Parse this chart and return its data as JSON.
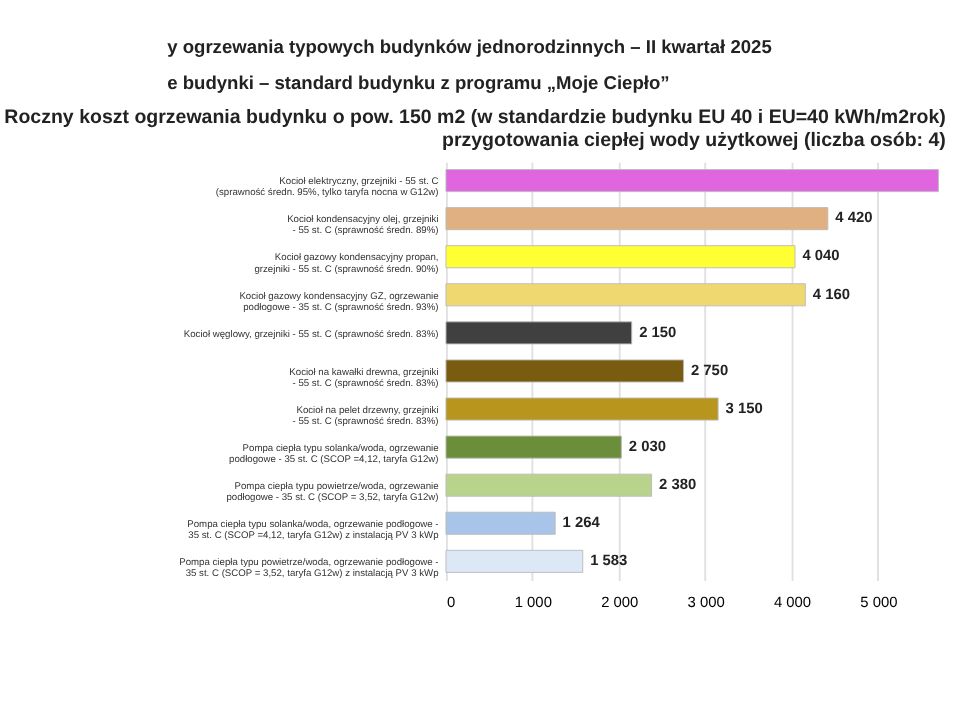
{
  "chart_data": {
    "type": "bar",
    "orientation": "horizontal",
    "title": "Roczny koszt ogrzewania budynku o pow. 150 m2 (w standardzie budynku EU 40 i EU=40 kWh/m2rok)\nprzygotowania ciepłej wody użytkowej (liczba osób: 4)",
    "annotations": [
      "y ogrzewania typowych budynków jednorodzinnych – II kwartał 2025",
      "e budynki – standard budynku z programu „Moje Ciepło”"
    ],
    "categories": [
      "Kocioł elektryczny, grzejniki - 55 st. C (sprawność średn. 95%, tylko taryfa nocna w G12w)",
      "Kocioł kondensacyjny olej, grzejniki - 55 st. C (sprawność średn. 89%)",
      "Kocioł gazowy kondensacyjny propan, grzejniki - 55 st. C (sprawność średn. 90%)",
      "Kocioł gazowy kondensacyjny GZ, ogrzewanie podłogowe - 35 st. C (sprawność średn. 93%)",
      "Kocioł węglowy, grzejniki - 55 st. C (sprawność średn. 83%)",
      "Kocioł na kawałki drewna, grzejniki - 55 st. C (sprawność średn. 83%)",
      "Kocioł na pelet drzewny, grzejniki - 55 st. C (sprawność średn. 83%)",
      "Pompa ciepła typu solanka/woda, ogrzewanie podłogowe - 35 st. C (SCOP =4,12, taryfa G12w)",
      "Pompa ciepła typu powietrze/woda, ogrzewanie podłogowe - 35 st. C (SCOP = 3,52, taryfa G12w)",
      "Pompa ciepła typu solanka/woda, ogrzewanie podłogowe - 35 st. C (SCOP =4,12, taryfa G12w) z instalacją PV 3 kWp",
      "Pompa ciepła typu powietrze/woda, ogrzewanie podłogowe - 35 st. C (SCOP = 3,52, taryfa G12w) z instalacją PV 3 kWp"
    ],
    "values": [
      5700,
      4420,
      4040,
      4160,
      2150,
      2750,
      3150,
      2030,
      2380,
      1264,
      1583
    ],
    "value_labels": [
      null,
      "4 420",
      "4 040",
      "4 160",
      "2 150",
      "2 750",
      "3 150",
      "2 030",
      "2 380",
      "1 264",
      "1 583"
    ],
    "colors": [
      "#e066e0",
      "#e0b080",
      "#ffff33",
      "#f0d870",
      "#404040",
      "#7a5c10",
      "#b8961e",
      "#6b8e3a",
      "#b8d48c",
      "#a8c4e8",
      "#dce8f5"
    ],
    "xlim": [
      0,
      5700
    ],
    "xticks": [
      0,
      {
        "value": 1000,
        "label": "1 000"
      },
      {
        "value": 2000,
        "label": "2 000"
      },
      {
        "value": 3000,
        "label": "3 000"
      },
      {
        "value": 4000,
        "label": "4 000"
      },
      {
        "value": 5000,
        "label": "5 000"
      }
    ],
    "grid": "x",
    "legend": false
  }
}
